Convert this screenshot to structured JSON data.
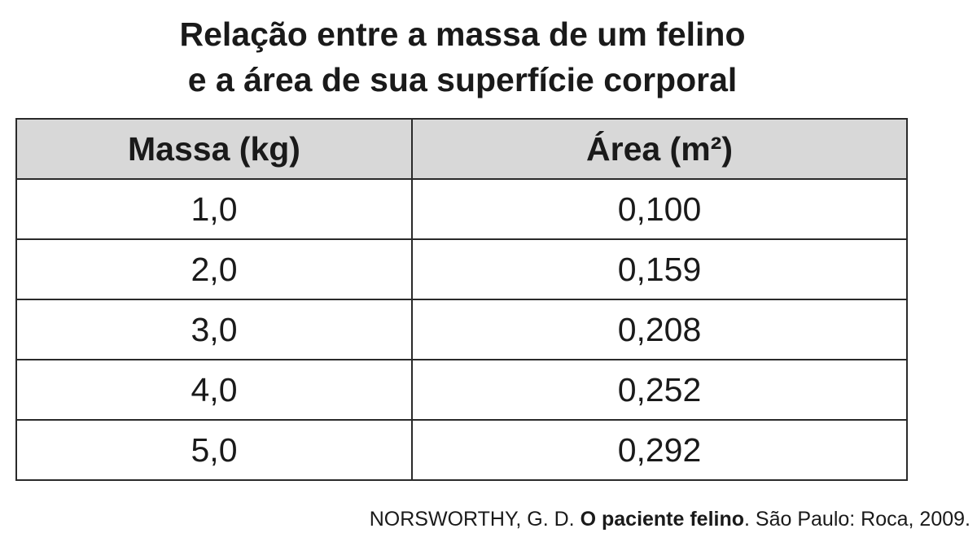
{
  "title": {
    "lines": [
      "Relação entre a massa de um felino",
      "e a área de sua superfície corporal"
    ]
  },
  "table": {
    "header": [
      "Massa (kg)",
      "Área (m²)"
    ],
    "rows": [
      [
        "1,0",
        "0,100"
      ],
      [
        "2,0",
        "0,159"
      ],
      [
        "3,0",
        "0,208"
      ],
      [
        "4,0",
        "0,252"
      ],
      [
        "5,0",
        "0,292"
      ]
    ]
  },
  "source": {
    "author": "NORSWORTHY, G. D.",
    "work": "O paciente felino",
    "rest": ". São Paulo: Roca, 2009."
  }
}
